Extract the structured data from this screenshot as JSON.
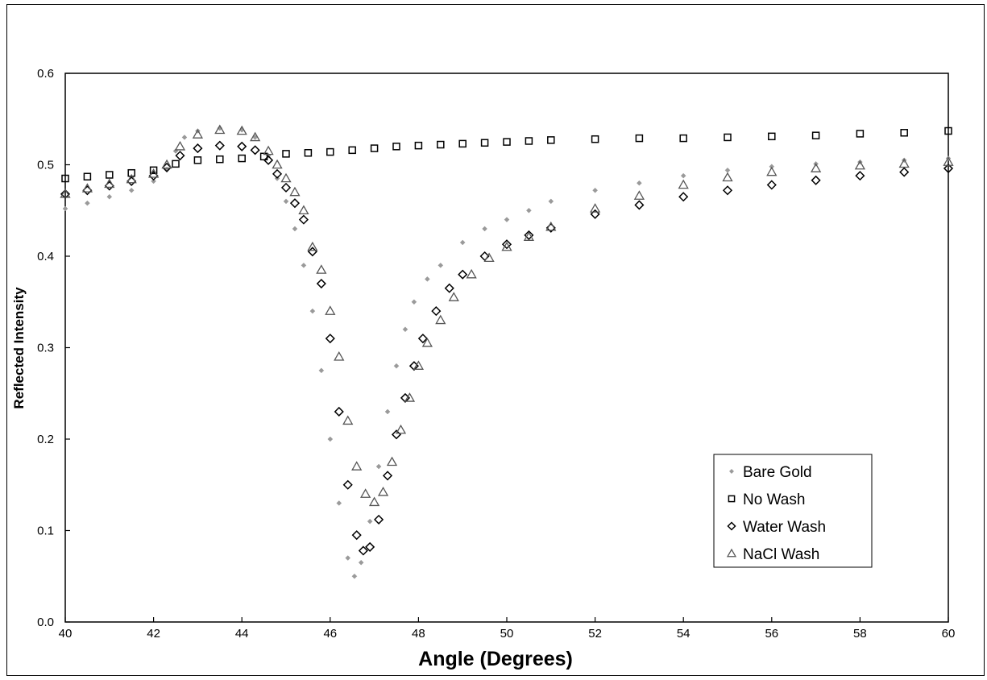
{
  "chart_data": {
    "type": "scatter",
    "title": "",
    "xlabel": "Angle (Degrees)",
    "ylabel": "Reflected Intensity",
    "xlim": [
      40,
      60
    ],
    "ylim": [
      0,
      0.6
    ],
    "xticks": [
      "40",
      "42",
      "44",
      "46",
      "48",
      "50",
      "52",
      "54",
      "56",
      "58",
      "60"
    ],
    "yticks": [
      "0.0",
      "0.1",
      "0.2",
      "0.3",
      "0.4",
      "0.5",
      "0.6"
    ],
    "grid": false,
    "legend_position": "bottom-right",
    "series": [
      {
        "name": "Bare Gold",
        "marker": "small-diamond",
        "color": "#9a9a9a",
        "points": [
          [
            40.0,
            0.452
          ],
          [
            40.5,
            0.458
          ],
          [
            41.0,
            0.465
          ],
          [
            41.5,
            0.472
          ],
          [
            42.0,
            0.482
          ],
          [
            42.3,
            0.495
          ],
          [
            42.5,
            0.515
          ],
          [
            42.7,
            0.53
          ],
          [
            43.0,
            0.537
          ],
          [
            43.5,
            0.54
          ],
          [
            44.0,
            0.538
          ],
          [
            44.3,
            0.53
          ],
          [
            44.6,
            0.51
          ],
          [
            44.8,
            0.485
          ],
          [
            45.0,
            0.46
          ],
          [
            45.2,
            0.43
          ],
          [
            45.4,
            0.39
          ],
          [
            45.6,
            0.34
          ],
          [
            45.8,
            0.275
          ],
          [
            46.0,
            0.2
          ],
          [
            46.2,
            0.13
          ],
          [
            46.4,
            0.07
          ],
          [
            46.55,
            0.05
          ],
          [
            46.7,
            0.065
          ],
          [
            46.9,
            0.11
          ],
          [
            47.1,
            0.17
          ],
          [
            47.3,
            0.23
          ],
          [
            47.5,
            0.28
          ],
          [
            47.7,
            0.32
          ],
          [
            47.9,
            0.35
          ],
          [
            48.2,
            0.375
          ],
          [
            48.5,
            0.39
          ],
          [
            49.0,
            0.415
          ],
          [
            49.5,
            0.43
          ],
          [
            50.0,
            0.44
          ],
          [
            50.5,
            0.45
          ],
          [
            51.0,
            0.46
          ],
          [
            52.0,
            0.472
          ],
          [
            53.0,
            0.48
          ],
          [
            54.0,
            0.488
          ],
          [
            55.0,
            0.494
          ],
          [
            56.0,
            0.498
          ],
          [
            57.0,
            0.501
          ],
          [
            58.0,
            0.503
          ],
          [
            59.0,
            0.505
          ],
          [
            60.0,
            0.507
          ]
        ]
      },
      {
        "name": "No Wash",
        "marker": "square",
        "color": "#000000",
        "points": [
          [
            40.0,
            0.485
          ],
          [
            40.5,
            0.487
          ],
          [
            41.0,
            0.489
          ],
          [
            41.5,
            0.491
          ],
          [
            42.0,
            0.494
          ],
          [
            42.5,
            0.501
          ],
          [
            43.0,
            0.505
          ],
          [
            43.5,
            0.506
          ],
          [
            44.0,
            0.507
          ],
          [
            44.5,
            0.509
          ],
          [
            45.0,
            0.512
          ],
          [
            45.5,
            0.513
          ],
          [
            46.0,
            0.514
          ],
          [
            46.5,
            0.516
          ],
          [
            47.0,
            0.518
          ],
          [
            47.5,
            0.52
          ],
          [
            48.0,
            0.521
          ],
          [
            48.5,
            0.522
          ],
          [
            49.0,
            0.523
          ],
          [
            49.5,
            0.524
          ],
          [
            50.0,
            0.525
          ],
          [
            50.5,
            0.526
          ],
          [
            51.0,
            0.527
          ],
          [
            52.0,
            0.528
          ],
          [
            53.0,
            0.529
          ],
          [
            54.0,
            0.529
          ],
          [
            55.0,
            0.53
          ],
          [
            56.0,
            0.531
          ],
          [
            57.0,
            0.532
          ],
          [
            58.0,
            0.534
          ],
          [
            59.0,
            0.535
          ],
          [
            60.0,
            0.537
          ]
        ]
      },
      {
        "name": "Water Wash",
        "marker": "diamond",
        "color": "#000000",
        "points": [
          [
            40.0,
            0.468
          ],
          [
            40.5,
            0.472
          ],
          [
            41.0,
            0.477
          ],
          [
            41.5,
            0.482
          ],
          [
            42.0,
            0.488
          ],
          [
            42.3,
            0.497
          ],
          [
            42.6,
            0.51
          ],
          [
            43.0,
            0.518
          ],
          [
            43.5,
            0.521
          ],
          [
            44.0,
            0.52
          ],
          [
            44.3,
            0.516
          ],
          [
            44.6,
            0.505
          ],
          [
            44.8,
            0.49
          ],
          [
            45.0,
            0.475
          ],
          [
            45.2,
            0.458
          ],
          [
            45.4,
            0.44
          ],
          [
            45.6,
            0.405
          ],
          [
            45.8,
            0.37
          ],
          [
            46.0,
            0.31
          ],
          [
            46.2,
            0.23
          ],
          [
            46.4,
            0.15
          ],
          [
            46.6,
            0.095
          ],
          [
            46.75,
            0.078
          ],
          [
            46.9,
            0.082
          ],
          [
            47.1,
            0.112
          ],
          [
            47.3,
            0.16
          ],
          [
            47.5,
            0.205
          ],
          [
            47.7,
            0.245
          ],
          [
            47.9,
            0.28
          ],
          [
            48.1,
            0.31
          ],
          [
            48.4,
            0.34
          ],
          [
            48.7,
            0.365
          ],
          [
            49.0,
            0.38
          ],
          [
            49.5,
            0.4
          ],
          [
            50.0,
            0.413
          ],
          [
            50.5,
            0.423
          ],
          [
            51.0,
            0.431
          ],
          [
            52.0,
            0.446
          ],
          [
            53.0,
            0.456
          ],
          [
            54.0,
            0.465
          ],
          [
            55.0,
            0.472
          ],
          [
            56.0,
            0.478
          ],
          [
            57.0,
            0.483
          ],
          [
            58.0,
            0.488
          ],
          [
            59.0,
            0.492
          ],
          [
            60.0,
            0.496
          ]
        ]
      },
      {
        "name": "NaCl Wash",
        "marker": "triangle",
        "color": "#555555",
        "points": [
          [
            40.0,
            0.468
          ],
          [
            40.5,
            0.474
          ],
          [
            41.0,
            0.479
          ],
          [
            41.5,
            0.484
          ],
          [
            42.0,
            0.49
          ],
          [
            42.3,
            0.5
          ],
          [
            42.6,
            0.52
          ],
          [
            43.0,
            0.533
          ],
          [
            43.5,
            0.538
          ],
          [
            44.0,
            0.537
          ],
          [
            44.3,
            0.53
          ],
          [
            44.6,
            0.515
          ],
          [
            44.8,
            0.5
          ],
          [
            45.0,
            0.485
          ],
          [
            45.2,
            0.47
          ],
          [
            45.4,
            0.45
          ],
          [
            45.6,
            0.41
          ],
          [
            45.8,
            0.385
          ],
          [
            46.0,
            0.34
          ],
          [
            46.2,
            0.29
          ],
          [
            46.4,
            0.22
          ],
          [
            46.6,
            0.17
          ],
          [
            46.8,
            0.14
          ],
          [
            47.0,
            0.131
          ],
          [
            47.2,
            0.142
          ],
          [
            47.4,
            0.175
          ],
          [
            47.6,
            0.21
          ],
          [
            47.8,
            0.245
          ],
          [
            48.0,
            0.28
          ],
          [
            48.2,
            0.305
          ],
          [
            48.5,
            0.33
          ],
          [
            48.8,
            0.355
          ],
          [
            49.2,
            0.38
          ],
          [
            49.6,
            0.398
          ],
          [
            50.0,
            0.41
          ],
          [
            50.5,
            0.421
          ],
          [
            51.0,
            0.432
          ],
          [
            52.0,
            0.452
          ],
          [
            53.0,
            0.466
          ],
          [
            54.0,
            0.478
          ],
          [
            55.0,
            0.486
          ],
          [
            56.0,
            0.492
          ],
          [
            57.0,
            0.496
          ],
          [
            58.0,
            0.499
          ],
          [
            59.0,
            0.501
          ],
          [
            60.0,
            0.503
          ]
        ]
      }
    ]
  }
}
